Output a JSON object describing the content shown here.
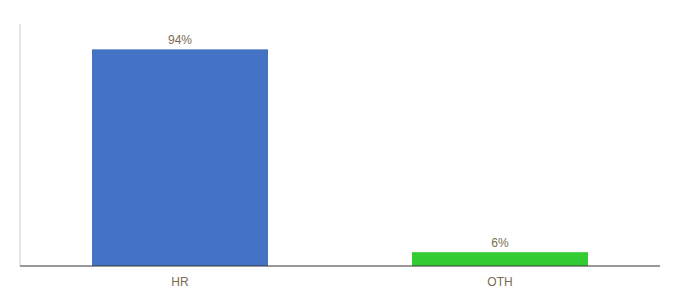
{
  "chart_data": {
    "type": "bar",
    "categories": [
      "HR",
      "OTH"
    ],
    "values": [
      94,
      6
    ],
    "value_labels": [
      "94%",
      "6%"
    ],
    "colors": [
      "#4472c4",
      "#33cc33"
    ],
    "ylim": [
      0,
      105
    ],
    "grid": false,
    "data_labels": true,
    "tick_labels": "x"
  }
}
